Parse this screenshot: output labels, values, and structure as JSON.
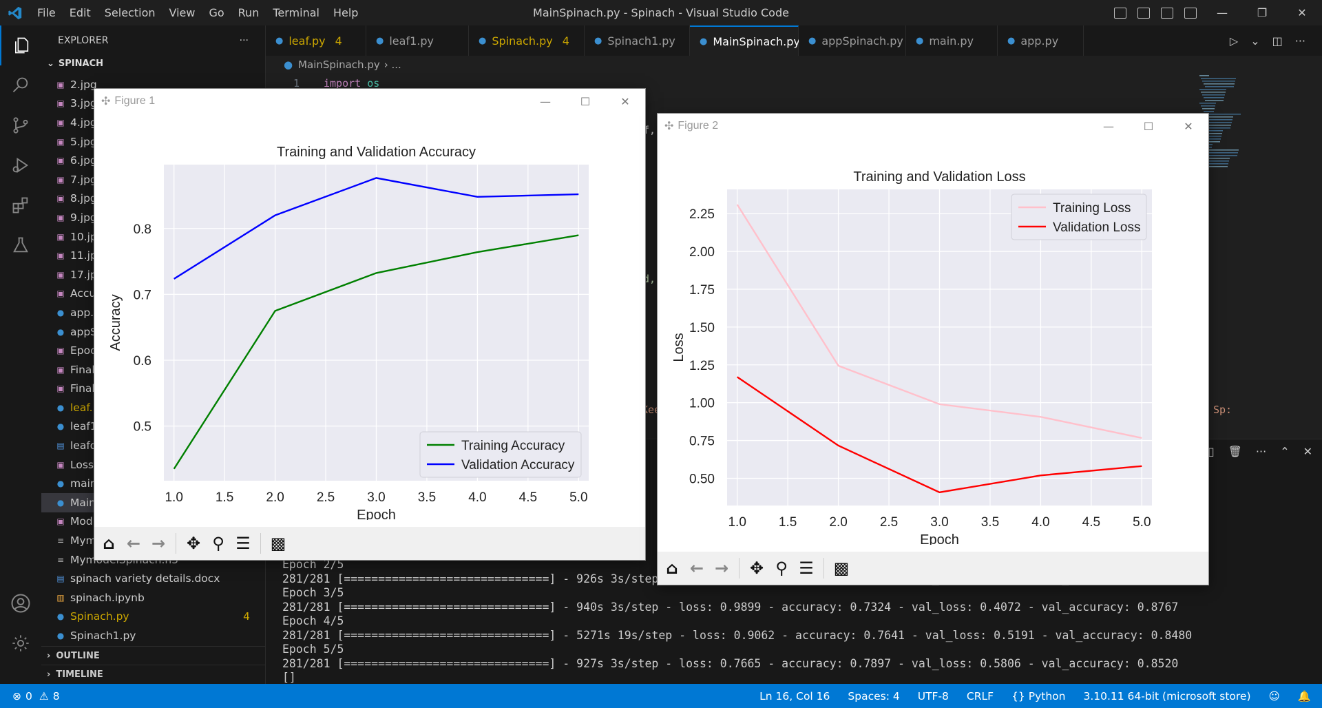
{
  "window": {
    "title": "MainSpinach.py - Spinach - Visual Studio Code",
    "menu": [
      "File",
      "Edit",
      "Selection",
      "View",
      "Go",
      "Run",
      "Terminal",
      "Help"
    ]
  },
  "explorer": {
    "header": "EXPLORER",
    "folder": "SPINACH",
    "outline": "OUTLINE",
    "timeline": "TIMELINE",
    "files": [
      {
        "name": "2.jpg",
        "icon": "image-icon"
      },
      {
        "name": "3.jpg",
        "icon": "image-icon"
      },
      {
        "name": "4.jpg",
        "icon": "image-icon"
      },
      {
        "name": "5.jpg",
        "icon": "image-icon"
      },
      {
        "name": "6.jpg",
        "icon": "image-icon"
      },
      {
        "name": "7.jpg",
        "icon": "image-icon"
      },
      {
        "name": "8.jpg",
        "icon": "image-icon"
      },
      {
        "name": "9.jpg",
        "icon": "image-icon"
      },
      {
        "name": "10.jpg",
        "icon": "image-icon"
      },
      {
        "name": "11.jpg",
        "icon": "image-icon"
      },
      {
        "name": "17.jpg",
        "icon": "image-icon"
      },
      {
        "name": "Accu",
        "icon": "image-icon"
      },
      {
        "name": "app.p",
        "icon": "python-icon"
      },
      {
        "name": "appS",
        "icon": "python-icon"
      },
      {
        "name": "Epoc",
        "icon": "image-icon"
      },
      {
        "name": "Final",
        "icon": "image-icon"
      },
      {
        "name": "Final",
        "icon": "image-icon"
      },
      {
        "name": "leaf.p",
        "icon": "python-icon",
        "warn": true
      },
      {
        "name": "leaf1",
        "icon": "python-icon"
      },
      {
        "name": "leafd",
        "icon": "doc-icon"
      },
      {
        "name": "Loss1",
        "icon": "image-icon"
      },
      {
        "name": "main",
        "icon": "python-icon"
      },
      {
        "name": "Main",
        "icon": "python-icon",
        "selected": true
      },
      {
        "name": "Mod",
        "icon": "image-icon"
      },
      {
        "name": "Mym",
        "icon": "lines-icon"
      },
      {
        "name": "MymodelSpinach.h5",
        "icon": "lines-icon"
      },
      {
        "name": "spinach variety details.docx",
        "icon": "doc-icon"
      },
      {
        "name": "spinach.ipynb",
        "icon": "notebook-icon"
      },
      {
        "name": "Spinach.py",
        "icon": "python-icon",
        "warn": true,
        "badge": "4"
      },
      {
        "name": "Spinach1.py",
        "icon": "python-icon"
      }
    ]
  },
  "tabs": [
    {
      "label": "leaf.py",
      "count": "4",
      "warn": true
    },
    {
      "label": "leaf1.py"
    },
    {
      "label": "Spinach.py",
      "count": "4",
      "warn": true
    },
    {
      "label": "Spinach1.py"
    },
    {
      "label": "MainSpinach.py",
      "active": true
    },
    {
      "label": "appSpinach.py"
    },
    {
      "label": "main.py"
    },
    {
      "label": "app.py"
    }
  ],
  "breadcrumb": {
    "file": "MainSpinach.py",
    "rest": "› ..."
  },
  "editor": {
    "line_no": "1",
    "kw": "import",
    "mod": "os",
    "frag1": "f,",
    "frag2": "d,",
    "frag3": "Kee",
    "frag4": "Sp:"
  },
  "terminal": {
    "lines": [
      "Epoch 2/5",
      "281/281 [==============================] - 926s 3s/step - loss: 1.2442 - accuracy: 0.6749 - val_loss: 0.7162 - val_accuracy: 0.8200",
      "Epoch 3/5",
      "281/281 [==============================] - 940s 3s/step - loss: 0.9899 - accuracy: 0.7324 - val_loss: 0.4072 - val_accuracy: 0.8767",
      "Epoch 4/5",
      "281/281 [==============================] - 5271s 19s/step - loss: 0.9062 - accuracy: 0.7641 - val_loss: 0.5191 - val_accuracy: 0.8480",
      "Epoch 5/5",
      "281/281 [==============================] - 927s 3s/step - loss: 0.7665 - accuracy: 0.7897 - val_loss: 0.5806 - val_accuracy: 0.8520",
      "[]"
    ]
  },
  "status": {
    "errors": "0",
    "warnings": "8",
    "position": "Ln 16, Col 16",
    "spaces": "Spaces: 4",
    "encoding": "UTF-8",
    "eol": "CRLF",
    "language": "Python",
    "interpreter": "3.10.11 64-bit (microsoft store)"
  },
  "figures": {
    "fig1_title": "Figure 1",
    "fig2_title": "Figure 2"
  },
  "chart_data": [
    {
      "type": "line",
      "title": "Training and Validation Accuracy",
      "xlabel": "Epoch",
      "ylabel": "Accuracy",
      "x": [
        1,
        2,
        3,
        4,
        5
      ],
      "xlim": [
        0.9,
        5.1
      ],
      "ylim": [
        0.417,
        0.897
      ],
      "xticks": [
        "1.0",
        "1.5",
        "2.0",
        "2.5",
        "3.0",
        "3.5",
        "4.0",
        "4.5",
        "5.0"
      ],
      "yticks": [
        "0.5",
        "0.6",
        "0.7",
        "0.8"
      ],
      "grid": true,
      "legend": "lower-right",
      "series": [
        {
          "name": "Training Accuracy",
          "color": "#008000",
          "values": [
            0.435,
            0.6749,
            0.7324,
            0.7641,
            0.7897
          ]
        },
        {
          "name": "Validation Accuracy",
          "color": "#0000ff",
          "values": [
            0.7235,
            0.82,
            0.8767,
            0.848,
            0.852
          ]
        }
      ]
    },
    {
      "type": "line",
      "title": "Training and Validation Loss",
      "xlabel": "Epoch",
      "ylabel": "Loss",
      "x": [
        1,
        2,
        3,
        4,
        5
      ],
      "xlim": [
        0.9,
        5.1
      ],
      "ylim": [
        0.32,
        2.41
      ],
      "xticks": [
        "1.0",
        "1.5",
        "2.0",
        "2.5",
        "3.0",
        "3.5",
        "4.0",
        "4.5",
        "5.0"
      ],
      "yticks": [
        "0.50",
        "0.75",
        "1.00",
        "1.25",
        "1.50",
        "1.75",
        "2.00",
        "2.25"
      ],
      "grid": true,
      "legend": "upper-right",
      "series": [
        {
          "name": "Training Loss",
          "color": "#ffc0cb",
          "values": [
            2.31,
            1.2442,
            0.9899,
            0.9062,
            0.7665
          ]
        },
        {
          "name": "Validation Loss",
          "color": "#ff0000",
          "values": [
            1.17,
            0.7162,
            0.4072,
            0.5191,
            0.5806
          ]
        }
      ]
    }
  ]
}
